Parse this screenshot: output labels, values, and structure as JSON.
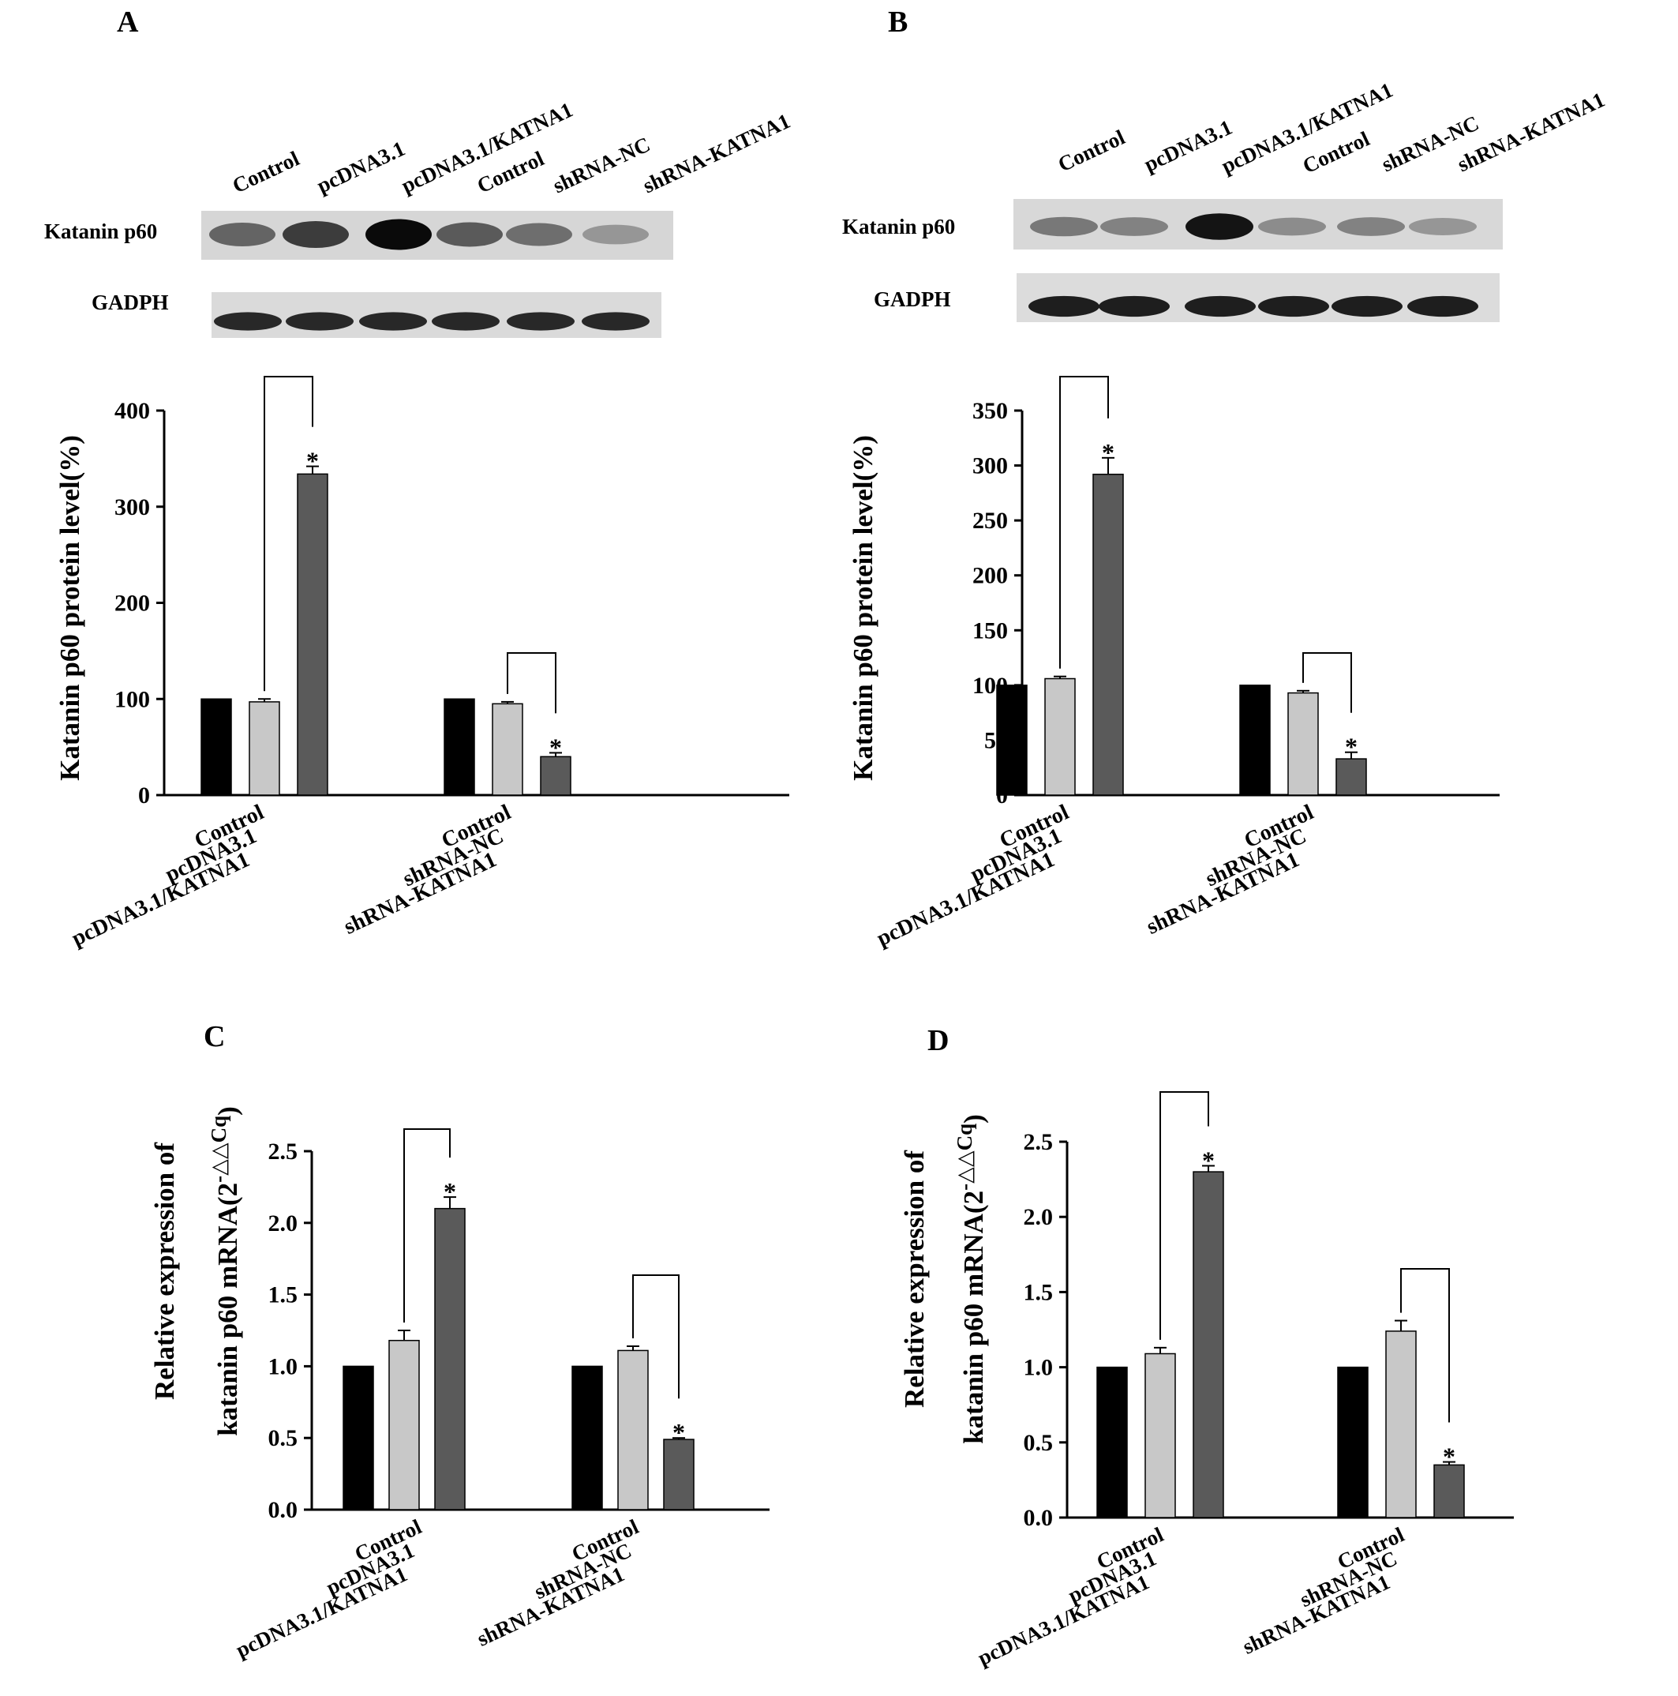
{
  "colors": {
    "black_bar": "#000000",
    "light_bar": "#c8c8c8",
    "dark_bar": "#5a5a5a",
    "axis": "#000000"
  },
  "panels": {
    "A": {
      "letter": "A",
      "blot": {
        "lanes": [
          "Control",
          "pcDNA3.1",
          "pcDNA3.1/KATNA1",
          "Control",
          "shRNA-NC",
          "shRNA-KATNA1"
        ],
        "rows": [
          "Katanin p60",
          "GADPH"
        ],
        "katanin_intensity": [
          0.55,
          0.75,
          1.0,
          0.6,
          0.5,
          0.3
        ],
        "gadph_intensity": [
          0.85,
          0.85,
          0.85,
          0.85,
          0.85,
          0.85
        ]
      }
    },
    "B": {
      "letter": "B",
      "blot": {
        "lanes": [
          "Control",
          "pcDNA3.1",
          "pcDNA3.1/KATNA1",
          "Control",
          "shRNA-NC",
          "shRNA-KATNA1"
        ],
        "rows": [
          "Katanin p60",
          "GADPH"
        ],
        "katanin_intensity": [
          0.45,
          0.4,
          0.95,
          0.35,
          0.4,
          0.3
        ],
        "gadph_intensity": [
          0.9,
          0.9,
          0.9,
          0.9,
          0.9,
          0.9
        ]
      }
    },
    "C": {
      "letter": "C"
    },
    "D": {
      "letter": "D"
    }
  },
  "chart_data": [
    {
      "panel": "A",
      "type": "bar",
      "ylabel": "Katanin p60 protein level(%)",
      "ylim": [
        0,
        400
      ],
      "yticks": [
        "0",
        "100",
        "200",
        "300",
        "400"
      ],
      "groups": [
        {
          "categories": [
            "Control",
            "pcDNA3.1",
            "pcDNA3.1/KATNA1"
          ],
          "values": [
            100,
            97,
            334
          ],
          "errors": [
            0,
            3,
            8
          ],
          "significant": [
            false,
            false,
            true
          ]
        },
        {
          "categories": [
            "Control",
            "shRNA-NC",
            "shRNA-KATNA1"
          ],
          "values": [
            100,
            95,
            40
          ],
          "errors": [
            0,
            2,
            4
          ],
          "significant": [
            false,
            false,
            true
          ]
        }
      ],
      "annotations": [
        "*",
        "*"
      ]
    },
    {
      "panel": "B",
      "type": "bar",
      "ylabel": "Katanin p60 protein level(%)",
      "ylim": [
        0,
        350
      ],
      "yticks": [
        "0",
        "50",
        "100",
        "150",
        "200",
        "250",
        "300",
        "350"
      ],
      "groups": [
        {
          "categories": [
            "Control",
            "pcDNA3.1",
            "pcDNA3.1/KATNA1"
          ],
          "values": [
            100,
            106,
            292
          ],
          "errors": [
            0,
            2,
            15
          ],
          "significant": [
            false,
            false,
            true
          ]
        },
        {
          "categories": [
            "Control",
            "shRNA-NC",
            "shRNA-KATNA1"
          ],
          "values": [
            100,
            93,
            33
          ],
          "errors": [
            0,
            2,
            6
          ],
          "significant": [
            false,
            false,
            true
          ]
        }
      ],
      "annotations": [
        "*",
        "*"
      ]
    },
    {
      "panel": "C",
      "type": "bar",
      "ylabel_line1": "Relative expression of",
      "ylabel_line2": "katanin p60 mRNA(2",
      "ylabel_sup": "-△△Cq",
      "ylabel_close": ")",
      "ylim": [
        0,
        2.5
      ],
      "yticks": [
        "0.0",
        "0.5",
        "1.0",
        "1.5",
        "2.0",
        "2.5"
      ],
      "groups": [
        {
          "categories": [
            "Control",
            "pcDNA3.1",
            "pcDNA3.1/KATNA1"
          ],
          "values": [
            1.0,
            1.18,
            2.1
          ],
          "errors": [
            0,
            0.07,
            0.08
          ],
          "significant": [
            false,
            false,
            true
          ]
        },
        {
          "categories": [
            "Control",
            "shRNA-NC",
            "shRNA-KATNA1"
          ],
          "values": [
            1.0,
            1.11,
            0.49
          ],
          "errors": [
            0,
            0.03,
            0.01
          ],
          "significant": [
            false,
            false,
            true
          ]
        }
      ],
      "annotations": [
        "*",
        "*"
      ]
    },
    {
      "panel": "D",
      "type": "bar",
      "ylabel_line1": "Relative expression of",
      "ylabel_line2": "katanin p60 mRNA(2",
      "ylabel_sup": "-△△Cq",
      "ylabel_close": ")",
      "ylim": [
        0,
        2.5
      ],
      "yticks": [
        "0.0",
        "0.5",
        "1.0",
        "1.5",
        "2.0",
        "2.5"
      ],
      "groups": [
        {
          "categories": [
            "Control",
            "pcDNA3.1",
            "pcDNA3.1/KATNA1"
          ],
          "values": [
            1.0,
            1.09,
            2.3
          ],
          "errors": [
            0,
            0.04,
            0.04
          ],
          "significant": [
            false,
            false,
            true
          ]
        },
        {
          "categories": [
            "Control",
            "shRNA-NC",
            "shRNA-KATNA1"
          ],
          "values": [
            1.0,
            1.24,
            0.35
          ],
          "errors": [
            0,
            0.07,
            0.02
          ],
          "significant": [
            false,
            false,
            true
          ]
        }
      ],
      "annotations": [
        "*",
        "*"
      ]
    }
  ]
}
